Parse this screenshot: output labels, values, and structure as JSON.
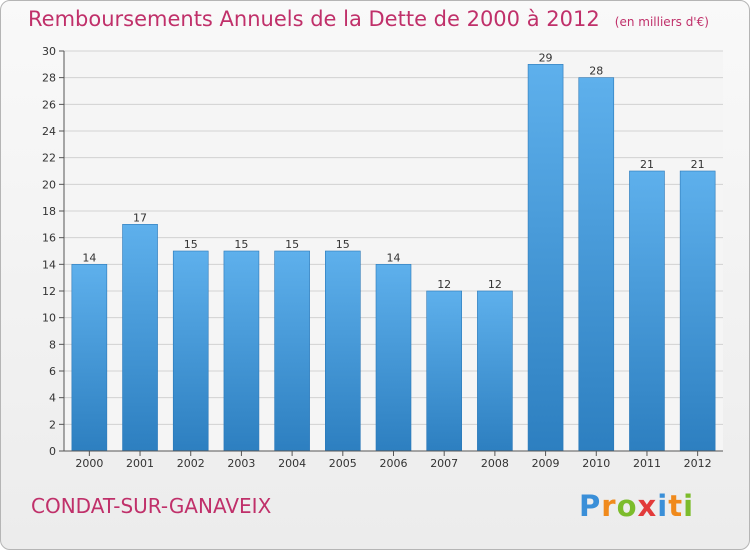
{
  "header": {
    "title": "Remboursements Annuels de la Dette de 2000 à 2012",
    "unit": "(en milliers d'€)"
  },
  "footer": {
    "commune": "CONDAT-SUR-GANAVEIX",
    "brand": "Proxiti",
    "brand_letters": [
      {
        "ch": "P",
        "color": "#3a8fd8"
      },
      {
        "ch": "r",
        "color": "#f08a1c"
      },
      {
        "ch": "o",
        "color": "#7cbc2b"
      },
      {
        "ch": "x",
        "color": "#e23b3b"
      },
      {
        "ch": "i",
        "color": "#3a8fd8"
      },
      {
        "ch": "t",
        "color": "#f08a1c"
      },
      {
        "ch": "i",
        "color": "#7cbc2b"
      }
    ]
  },
  "colors": {
    "title": "#c0306a",
    "bar_top": "#5eb0ec",
    "bar_bottom": "#2d7fc0",
    "axis": "#555555",
    "grid": "#d2d2d2"
  },
  "chart_data": {
    "type": "bar",
    "categories": [
      "2000",
      "2001",
      "2002",
      "2003",
      "2004",
      "2005",
      "2006",
      "2007",
      "2008",
      "2009",
      "2010",
      "2011",
      "2012"
    ],
    "values": [
      14,
      17,
      15,
      15,
      15,
      15,
      14,
      12,
      12,
      29,
      28,
      21,
      21
    ],
    "ylim": [
      0,
      30
    ],
    "yticks": [
      0,
      2,
      4,
      6,
      8,
      10,
      12,
      14,
      16,
      18,
      20,
      22,
      24,
      26,
      28,
      30
    ],
    "grid": true,
    "data_labels": true
  }
}
